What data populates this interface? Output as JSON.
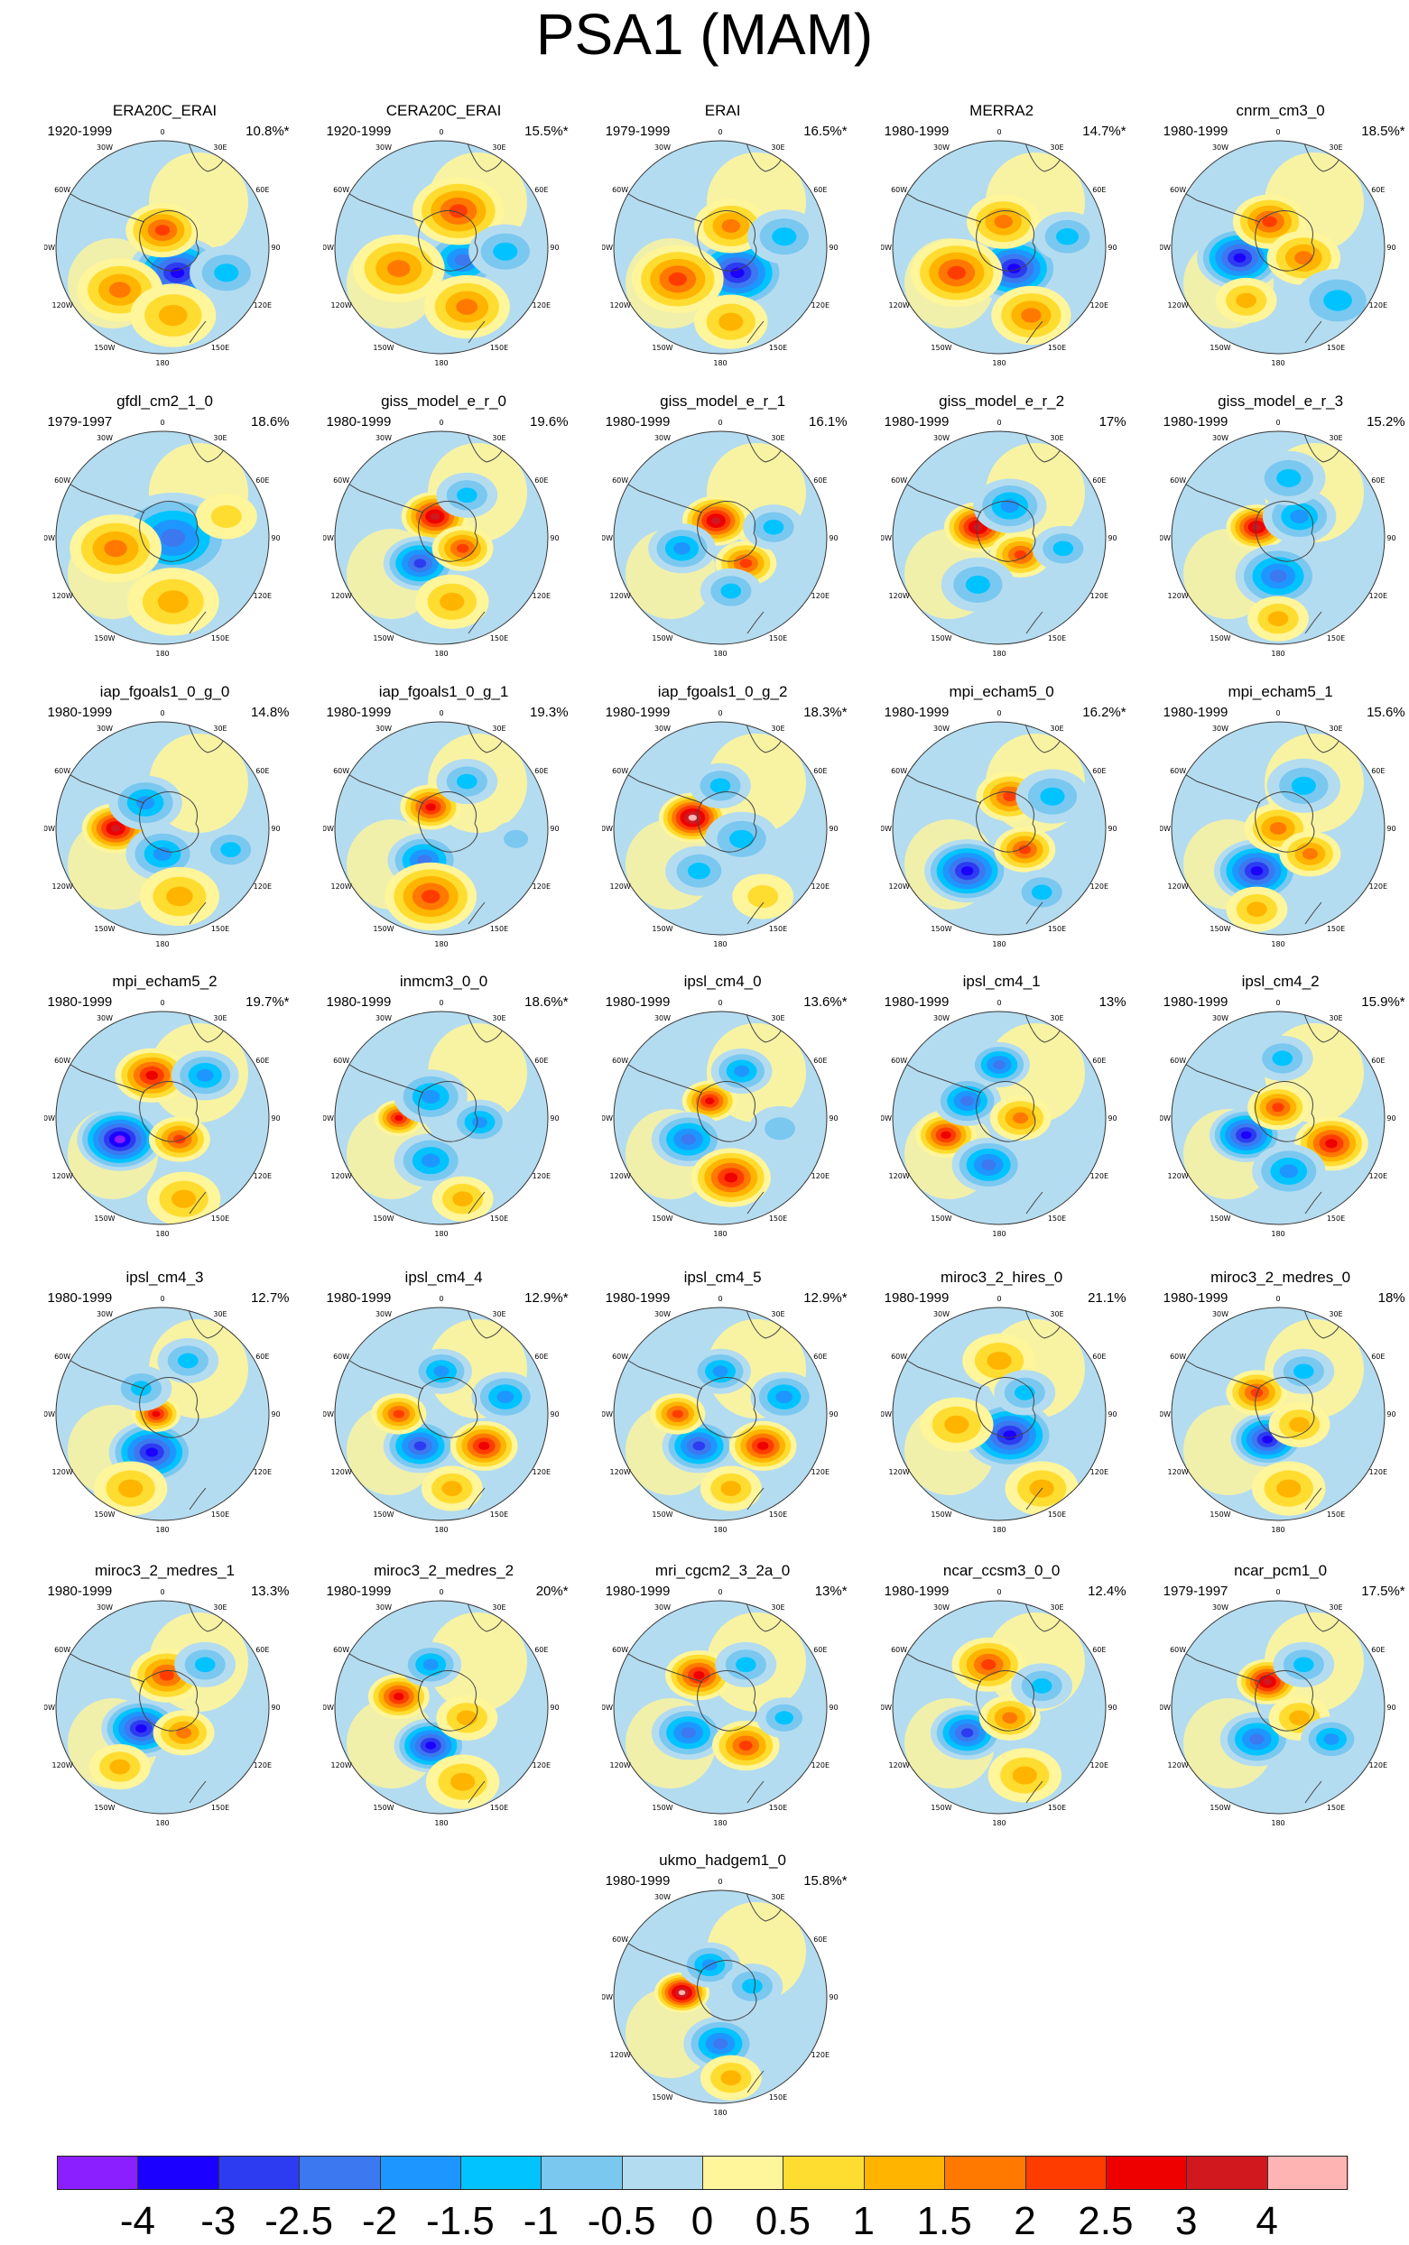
{
  "title": "PSA1 (MAM)",
  "map_labels": {
    "top": "0",
    "r30": "30E",
    "r60": "60E",
    "r90": "90E",
    "r120": "120E",
    "r150": "150E",
    "bottom": "180",
    "l30": "30W",
    "l60": "60W",
    "l90": "90W",
    "l120": "120W",
    "l150": "150W"
  },
  "panels": [
    {
      "name": "ERA20C_ERAI",
      "period": "1920-1999",
      "pct": "10.8%*",
      "pattern": [
        [
          "n",
          0.57,
          0.62,
          0.16,
          3
        ],
        [
          "p",
          0.5,
          0.42,
          0.12,
          2
        ],
        [
          "p",
          0.3,
          0.7,
          0.14,
          1.5
        ],
        [
          "n",
          0.8,
          0.62,
          0.12,
          1
        ],
        [
          "p",
          0.55,
          0.82,
          0.14,
          1
        ]
      ]
    },
    {
      "name": "CERA20C_ERAI",
      "period": "1920-1999",
      "pct": "15.5%*",
      "pattern": [
        [
          "n",
          0.6,
          0.56,
          0.13,
          2
        ],
        [
          "p",
          0.58,
          0.33,
          0.15,
          2
        ],
        [
          "p",
          0.3,
          0.6,
          0.15,
          1.5
        ],
        [
          "p",
          0.62,
          0.78,
          0.14,
          1.5
        ],
        [
          "n",
          0.8,
          0.52,
          0.12,
          1
        ]
      ]
    },
    {
      "name": "ERAI",
      "period": "1979-1999",
      "pct": "16.5%*",
      "pattern": [
        [
          "n",
          0.58,
          0.62,
          0.16,
          3
        ],
        [
          "p",
          0.3,
          0.65,
          0.15,
          2
        ],
        [
          "p",
          0.55,
          0.4,
          0.12,
          1.5
        ],
        [
          "n",
          0.8,
          0.45,
          0.12,
          1
        ],
        [
          "p",
          0.55,
          0.85,
          0.12,
          1
        ]
      ]
    },
    {
      "name": "MERRA2",
      "period": "1980-1999",
      "pct": "14.7%*",
      "pattern": [
        [
          "n",
          0.57,
          0.6,
          0.15,
          3
        ],
        [
          "p",
          0.3,
          0.62,
          0.15,
          2
        ],
        [
          "p",
          0.52,
          0.38,
          0.12,
          1.5
        ],
        [
          "p",
          0.65,
          0.82,
          0.13,
          1.5
        ],
        [
          "n",
          0.82,
          0.45,
          0.11,
          1
        ]
      ]
    },
    {
      "name": "cnrm_cm3_0",
      "period": "1980-1999",
      "pct": "18.5%*",
      "pattern": [
        [
          "n",
          0.32,
          0.55,
          0.14,
          3
        ],
        [
          "p",
          0.46,
          0.38,
          0.12,
          2
        ],
        [
          "p",
          0.62,
          0.55,
          0.12,
          1.5
        ],
        [
          "n",
          0.78,
          0.75,
          0.14,
          1
        ],
        [
          "p",
          0.35,
          0.75,
          0.1,
          1
        ]
      ]
    },
    {
      "name": "gfdl_cm2_1_0",
      "period": "1979-1997",
      "pct": "18.6%",
      "pattern": [
        [
          "n",
          0.55,
          0.5,
          0.2,
          2
        ],
        [
          "p",
          0.28,
          0.55,
          0.15,
          1.5
        ],
        [
          "p",
          0.55,
          0.8,
          0.15,
          1
        ],
        [
          "p",
          0.8,
          0.4,
          0.1,
          0.5
        ]
      ]
    },
    {
      "name": "giss_model_e_r_0",
      "period": "1980-1999",
      "pct": "19.6%",
      "pattern": [
        [
          "p",
          0.47,
          0.4,
          0.11,
          3
        ],
        [
          "n",
          0.4,
          0.62,
          0.12,
          2.5
        ],
        [
          "p",
          0.6,
          0.55,
          0.1,
          2
        ],
        [
          "n",
          0.62,
          0.3,
          0.1,
          1
        ],
        [
          "p",
          0.55,
          0.8,
          0.12,
          1
        ]
      ]
    },
    {
      "name": "giss_model_e_r_1",
      "period": "1980-1999",
      "pct": "16.1%",
      "pattern": [
        [
          "p",
          0.48,
          0.42,
          0.11,
          3
        ],
        [
          "n",
          0.32,
          0.55,
          0.11,
          1.5
        ],
        [
          "p",
          0.62,
          0.62,
          0.1,
          2
        ],
        [
          "n",
          0.75,
          0.45,
          0.1,
          1
        ],
        [
          "n",
          0.55,
          0.75,
          0.1,
          1
        ]
      ]
    },
    {
      "name": "giss_model_e_r_2",
      "period": "1980-1999",
      "pct": "17%",
      "pattern": [
        [
          "p",
          0.4,
          0.45,
          0.11,
          3
        ],
        [
          "n",
          0.55,
          0.35,
          0.12,
          1.5
        ],
        [
          "p",
          0.6,
          0.58,
          0.1,
          2
        ],
        [
          "n",
          0.4,
          0.72,
          0.12,
          1
        ],
        [
          "n",
          0.8,
          0.55,
          0.1,
          1
        ]
      ]
    },
    {
      "name": "giss_model_e_r_3",
      "period": "1980-1999",
      "pct": "15.2%",
      "pattern": [
        [
          "p",
          0.4,
          0.45,
          0.1,
          3
        ],
        [
          "n",
          0.6,
          0.4,
          0.12,
          1.5
        ],
        [
          "n",
          0.5,
          0.68,
          0.14,
          2
        ],
        [
          "n",
          0.55,
          0.22,
          0.12,
          1
        ],
        [
          "p",
          0.5,
          0.88,
          0.1,
          1
        ]
      ]
    },
    {
      "name": "iap_fgoals1_0_g_0",
      "period": "1980-1999",
      "pct": "14.8%",
      "pattern": [
        [
          "p",
          0.28,
          0.5,
          0.11,
          3
        ],
        [
          "n",
          0.42,
          0.38,
          0.12,
          1.5
        ],
        [
          "n",
          0.5,
          0.62,
          0.12,
          1.5
        ],
        [
          "p",
          0.58,
          0.82,
          0.13,
          1
        ],
        [
          "n",
          0.82,
          0.6,
          0.1,
          1
        ]
      ]
    },
    {
      "name": "iap_fgoals1_0_g_1",
      "period": "1980-1999",
      "pct": "19.3%",
      "pattern": [
        [
          "p",
          0.45,
          0.4,
          0.1,
          2.5
        ],
        [
          "n",
          0.42,
          0.65,
          0.12,
          2
        ],
        [
          "p",
          0.45,
          0.82,
          0.15,
          2
        ],
        [
          "n",
          0.62,
          0.28,
          0.1,
          1
        ],
        [
          "n",
          0.85,
          0.55,
          0.08,
          0.5
        ]
      ]
    },
    {
      "name": "iap_fgoals1_0_g_2",
      "period": "1980-1999",
      "pct": "18.3%*",
      "pattern": [
        [
          "p",
          0.37,
          0.45,
          0.11,
          4
        ],
        [
          "n",
          0.5,
          0.3,
          0.1,
          1
        ],
        [
          "n",
          0.6,
          0.55,
          0.12,
          1
        ],
        [
          "n",
          0.4,
          0.7,
          0.11,
          1
        ],
        [
          "p",
          0.7,
          0.82,
          0.1,
          0.5
        ]
      ]
    },
    {
      "name": "mpi_echam5_0",
      "period": "1980-1999",
      "pct": "16.2%*",
      "pattern": [
        [
          "n",
          0.35,
          0.7,
          0.14,
          3
        ],
        [
          "p",
          0.55,
          0.35,
          0.11,
          2
        ],
        [
          "p",
          0.62,
          0.6,
          0.1,
          2
        ],
        [
          "n",
          0.75,
          0.35,
          0.12,
          1
        ],
        [
          "n",
          0.7,
          0.8,
          0.1,
          1
        ]
      ]
    },
    {
      "name": "mpi_echam5_1",
      "period": "1980-1999",
      "pct": "15.6%",
      "pattern": [
        [
          "n",
          0.4,
          0.7,
          0.14,
          3
        ],
        [
          "p",
          0.5,
          0.5,
          0.11,
          1.5
        ],
        [
          "p",
          0.65,
          0.62,
          0.1,
          1.5
        ],
        [
          "n",
          0.62,
          0.3,
          0.12,
          1
        ],
        [
          "p",
          0.4,
          0.88,
          0.1,
          1
        ]
      ]
    },
    {
      "name": "mpi_echam5_2",
      "period": "1980-1999",
      "pct": "19.7%*",
      "pattern": [
        [
          "n",
          0.3,
          0.6,
          0.14,
          3.5
        ],
        [
          "p",
          0.45,
          0.3,
          0.12,
          2.5
        ],
        [
          "p",
          0.58,
          0.6,
          0.1,
          2
        ],
        [
          "n",
          0.7,
          0.3,
          0.11,
          1.5
        ],
        [
          "p",
          0.6,
          0.88,
          0.12,
          1
        ]
      ]
    },
    {
      "name": "inmcm3_0_0",
      "period": "1980-1999",
      "pct": "18.6%*",
      "pattern": [
        [
          "p",
          0.3,
          0.5,
          0.08,
          2.5
        ],
        [
          "n",
          0.45,
          0.4,
          0.12,
          1.5
        ],
        [
          "n",
          0.45,
          0.7,
          0.12,
          1.5
        ],
        [
          "n",
          0.68,
          0.52,
          0.1,
          1.5
        ],
        [
          "p",
          0.6,
          0.88,
          0.1,
          1
        ]
      ]
    },
    {
      "name": "ipsl_cm4_0",
      "period": "1980-1999",
      "pct": "13.6%*",
      "pattern": [
        [
          "p",
          0.45,
          0.42,
          0.09,
          2.5
        ],
        [
          "n",
          0.35,
          0.6,
          0.12,
          2
        ],
        [
          "p",
          0.55,
          0.78,
          0.13,
          2.5
        ],
        [
          "n",
          0.6,
          0.28,
          0.1,
          1.5
        ],
        [
          "n",
          0.78,
          0.55,
          0.1,
          0.5
        ]
      ]
    },
    {
      "name": "ipsl_cm4_1",
      "period": "1980-1999",
      "pct": "13%",
      "pattern": [
        [
          "p",
          0.25,
          0.58,
          0.1,
          2.5
        ],
        [
          "n",
          0.35,
          0.42,
          0.11,
          2
        ],
        [
          "n",
          0.45,
          0.72,
          0.12,
          2
        ],
        [
          "n",
          0.5,
          0.25,
          0.1,
          2
        ],
        [
          "p",
          0.6,
          0.5,
          0.1,
          1.5
        ]
      ]
    },
    {
      "name": "ipsl_cm4_2",
      "period": "1980-1999",
      "pct": "15.9%*",
      "pattern": [
        [
          "n",
          0.35,
          0.58,
          0.12,
          3
        ],
        [
          "p",
          0.5,
          0.45,
          0.1,
          2
        ],
        [
          "p",
          0.75,
          0.62,
          0.12,
          2.5
        ],
        [
          "n",
          0.55,
          0.75,
          0.12,
          1.5
        ],
        [
          "n",
          0.52,
          0.22,
          0.1,
          1
        ]
      ]
    },
    {
      "name": "ipsl_cm4_3",
      "period": "1980-1999",
      "pct": "12.7%",
      "pattern": [
        [
          "n",
          0.45,
          0.68,
          0.14,
          3
        ],
        [
          "p",
          0.47,
          0.5,
          0.08,
          2.5
        ],
        [
          "n",
          0.4,
          0.38,
          0.1,
          1
        ],
        [
          "n",
          0.62,
          0.25,
          0.1,
          1
        ],
        [
          "p",
          0.35,
          0.85,
          0.12,
          1
        ]
      ]
    },
    {
      "name": "ipsl_cm4_4",
      "period": "1980-1999",
      "pct": "12.9%*",
      "pattern": [
        [
          "n",
          0.4,
          0.65,
          0.12,
          2.5
        ],
        [
          "p",
          0.3,
          0.5,
          0.09,
          2
        ],
        [
          "p",
          0.7,
          0.65,
          0.11,
          2.5
        ],
        [
          "n",
          0.5,
          0.3,
          0.1,
          1.5
        ],
        [
          "n",
          0.8,
          0.42,
          0.11,
          1.5
        ],
        [
          "p",
          0.55,
          0.85,
          0.1,
          1
        ]
      ]
    },
    {
      "name": "ipsl_cm4_5",
      "period": "1980-1999",
      "pct": "12.9%*",
      "pattern": [
        [
          "n",
          0.4,
          0.65,
          0.12,
          2.5
        ],
        [
          "p",
          0.3,
          0.5,
          0.09,
          2
        ],
        [
          "p",
          0.7,
          0.65,
          0.11,
          2.5
        ],
        [
          "n",
          0.5,
          0.3,
          0.1,
          1.5
        ],
        [
          "n",
          0.8,
          0.42,
          0.11,
          1.5
        ],
        [
          "p",
          0.55,
          0.85,
          0.1,
          1
        ]
      ]
    },
    {
      "name": "miroc3_2_hires_0",
      "period": "1980-1999",
      "pct": "21.1%",
      "pattern": [
        [
          "n",
          0.55,
          0.6,
          0.15,
          3
        ],
        [
          "p",
          0.5,
          0.25,
          0.12,
          1
        ],
        [
          "p",
          0.3,
          0.55,
          0.12,
          1
        ],
        [
          "p",
          0.7,
          0.85,
          0.12,
          1
        ],
        [
          "n",
          0.62,
          0.4,
          0.1,
          1
        ]
      ]
    },
    {
      "name": "miroc3_2_medres_0",
      "period": "1980-1999",
      "pct": "18%",
      "pattern": [
        [
          "n",
          0.45,
          0.62,
          0.12,
          3
        ],
        [
          "p",
          0.4,
          0.4,
          0.1,
          2
        ],
        [
          "n",
          0.62,
          0.3,
          0.1,
          1
        ],
        [
          "p",
          0.6,
          0.55,
          0.1,
          1
        ],
        [
          "p",
          0.55,
          0.85,
          0.12,
          1
        ]
      ]
    },
    {
      "name": "miroc3_2_medres_1",
      "period": "1980-1999",
      "pct": "13.3%",
      "pattern": [
        [
          "n",
          0.4,
          0.6,
          0.13,
          3
        ],
        [
          "p",
          0.52,
          0.35,
          0.12,
          2
        ],
        [
          "p",
          0.6,
          0.62,
          0.1,
          1.5
        ],
        [
          "n",
          0.7,
          0.3,
          0.1,
          1
        ],
        [
          "p",
          0.3,
          0.78,
          0.1,
          1
        ]
      ]
    },
    {
      "name": "miroc3_2_medres_2",
      "period": "1980-1999",
      "pct": "20%*",
      "pattern": [
        [
          "p",
          0.3,
          0.45,
          0.1,
          2.5
        ],
        [
          "n",
          0.45,
          0.68,
          0.12,
          3
        ],
        [
          "n",
          0.45,
          0.3,
          0.1,
          1.5
        ],
        [
          "p",
          0.62,
          0.55,
          0.1,
          1
        ],
        [
          "p",
          0.6,
          0.85,
          0.12,
          1
        ]
      ]
    },
    {
      "name": "mri_cgcm2_3_2a_0",
      "period": "1980-1999",
      "pct": "13%*",
      "pattern": [
        [
          "p",
          0.4,
          0.35,
          0.11,
          2.5
        ],
        [
          "n",
          0.35,
          0.62,
          0.12,
          2
        ],
        [
          "p",
          0.62,
          0.68,
          0.11,
          2
        ],
        [
          "n",
          0.62,
          0.3,
          0.1,
          1
        ],
        [
          "n",
          0.8,
          0.55,
          0.09,
          1
        ]
      ]
    },
    {
      "name": "ncar_ccsm3_0_0",
      "period": "1980-1999",
      "pct": "12.4%",
      "pattern": [
        [
          "n",
          0.35,
          0.62,
          0.12,
          2.5
        ],
        [
          "p",
          0.45,
          0.3,
          0.12,
          2
        ],
        [
          "p",
          0.55,
          0.55,
          0.1,
          1.5
        ],
        [
          "n",
          0.7,
          0.4,
          0.1,
          1
        ],
        [
          "p",
          0.62,
          0.82,
          0.12,
          1
        ]
      ]
    },
    {
      "name": "ncar_pcm1_0",
      "period": "1979-1997",
      "pct": "17.5%*",
      "pattern": [
        [
          "p",
          0.45,
          0.38,
          0.1,
          3
        ],
        [
          "n",
          0.4,
          0.65,
          0.12,
          2
        ],
        [
          "n",
          0.62,
          0.3,
          0.1,
          1
        ],
        [
          "p",
          0.6,
          0.55,
          0.1,
          1
        ],
        [
          "n",
          0.75,
          0.65,
          0.1,
          1.5
        ]
      ]
    },
    {
      "name": "ukmo_hadgem1_0",
      "period": "1980-1999",
      "pct": "15.8%*",
      "pattern": [
        [
          "p",
          0.32,
          0.48,
          0.09,
          3.5
        ],
        [
          "n",
          0.45,
          0.35,
          0.1,
          1.5
        ],
        [
          "n",
          0.5,
          0.72,
          0.12,
          2
        ],
        [
          "n",
          0.65,
          0.45,
          0.1,
          1
        ],
        [
          "p",
          0.55,
          0.88,
          0.1,
          1
        ]
      ]
    }
  ],
  "colorbar": {
    "colors": [
      "#8b1fff",
      "#1c00ff",
      "#2d3cf0",
      "#3c78f0",
      "#1e96ff",
      "#00c3ff",
      "#7ac8f0",
      "#b4dcf0",
      "#fff59a",
      "#ffdc30",
      "#ffb400",
      "#ff7800",
      "#ff3c00",
      "#ee0000",
      "#d0181e",
      "#ffb4b4"
    ],
    "ticks": [
      "-4",
      "-3",
      "-2.5",
      "-2",
      "-1.5",
      "-1",
      "-0.5",
      "0",
      "0.5",
      "1",
      "1.5",
      "2",
      "2.5",
      "3",
      "4"
    ]
  }
}
